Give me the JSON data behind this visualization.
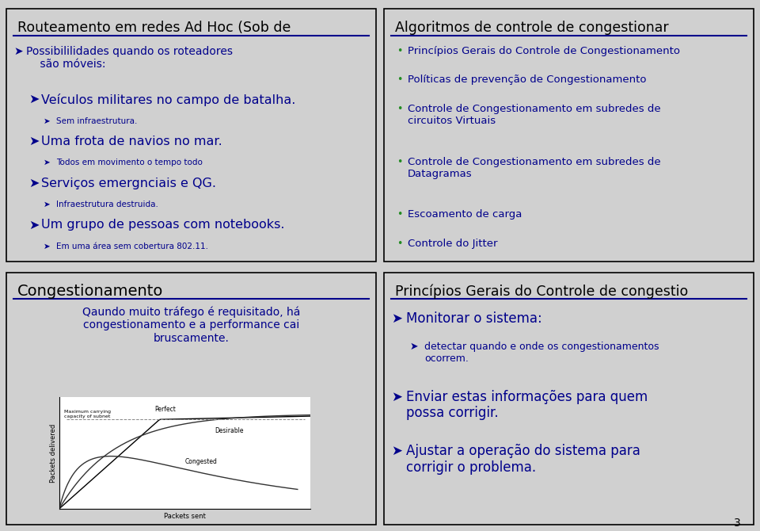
{
  "bg_color": "#d0d0d0",
  "slide_bg": "#ffffff",
  "border_color": "#000000",
  "title_color": "#000000",
  "underline_color": "#00008B",
  "blue_text": "#00008B",
  "green_bullet": "#228B22",
  "slide1": {
    "title": "Routeamento em redes Ad Hoc (Sob de",
    "title_size": 12.5,
    "items": [
      {
        "level": 0,
        "text": "Possibililidades quando os roteadores\n    são móveis:",
        "size": 10,
        "color": "#00008B"
      },
      {
        "level": 1,
        "text": "Veículos militares no campo de batalha.",
        "size": 11.5,
        "color": "#00008B"
      },
      {
        "level": 2,
        "text": "Sem infraestrutura.",
        "size": 7.5,
        "color": "#00008B"
      },
      {
        "level": 1,
        "text": "Uma frota de navios no mar.",
        "size": 11.5,
        "color": "#00008B"
      },
      {
        "level": 2,
        "text": "Todos em movimento o tempo todo",
        "size": 7.5,
        "color": "#00008B"
      },
      {
        "level": 1,
        "text": "Serviços emergnciais e QG.",
        "size": 11.5,
        "color": "#00008B"
      },
      {
        "level": 2,
        "text": "Infraestrutura destruida.",
        "size": 7.5,
        "color": "#00008B"
      },
      {
        "level": 1,
        "text": "Um grupo de pessoas com notebooks.",
        "size": 11.5,
        "color": "#00008B"
      },
      {
        "level": 2,
        "text": "Em uma área sem cobertura 802.11.",
        "size": 7.5,
        "color": "#00008B"
      }
    ]
  },
  "slide2": {
    "title": "Algoritmos de controle de congestionar",
    "title_size": 12.5,
    "items": [
      {
        "text": "Princípios Gerais do Controle de Congestionamento",
        "color": "#00008B"
      },
      {
        "text": "Políticas de prevenção de Congestionamento",
        "color": "#00008B"
      },
      {
        "text": "Controle de Congestionamento em subredes de\ncircuitos Virtuais",
        "color": "#00008B"
      },
      {
        "text": "Controle de Congestionamento em subredes de\nDatagramas",
        "color": "#00008B"
      },
      {
        "text": "Escoamento de carga",
        "color": "#00008B"
      },
      {
        "text": "Controle do Jitter",
        "color": "#00008B"
      }
    ]
  },
  "slide3": {
    "title": "Congestionamento",
    "title_size": 14,
    "subtitle": "Qaundo muito tráfego é requisitado, há\ncongestionamento e a performance cai\nbruscamente.",
    "subtitle_size": 10
  },
  "slide4": {
    "title": "Princípios Gerais do Controle de congestio",
    "title_size": 12.5,
    "items": [
      {
        "level": 0,
        "text": "Monitorar o sistema:",
        "size": 12,
        "color": "#00008B"
      },
      {
        "level": 1,
        "text": "detectar quando e onde os congestionamentos\nocorrem.",
        "size": 9,
        "color": "#00008B"
      },
      {
        "level": 0,
        "text": "Enviar estas informações para quem\npossa corrigir.",
        "size": 12,
        "color": "#00008B"
      },
      {
        "level": 0,
        "text": "Ajustar a operação do sistema para\ncorrigir o problema.",
        "size": 12,
        "color": "#00008B"
      }
    ]
  }
}
